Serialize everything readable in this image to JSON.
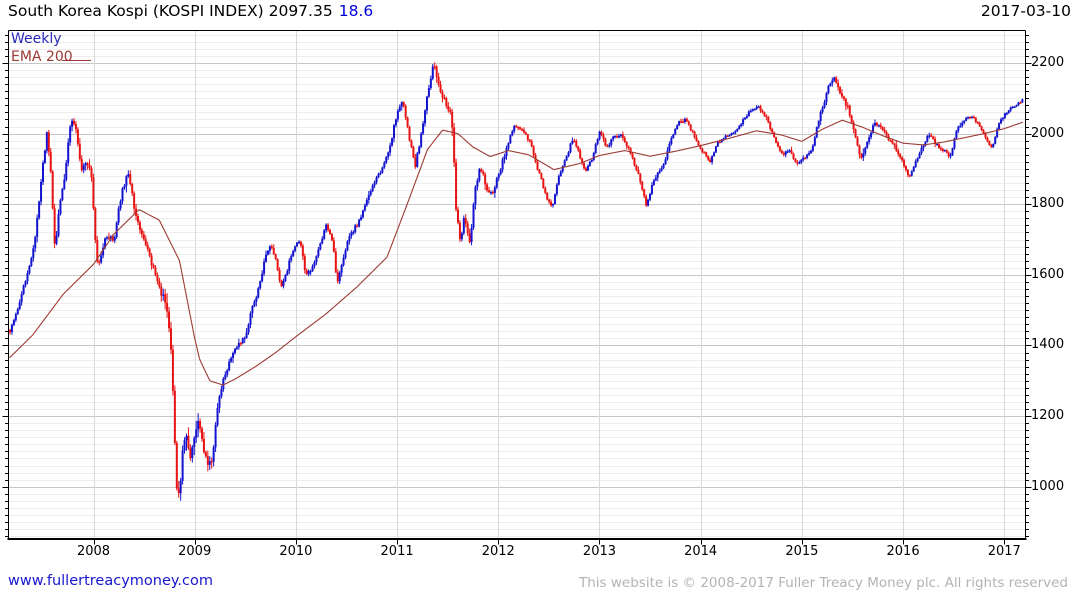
{
  "header": {
    "title": "South Korea Kospi (KOSPI INDEX) 2097.35",
    "change": "18.6",
    "date": "2017-03-10"
  },
  "legend": {
    "weekly": "Weekly",
    "ema": "EMA 200"
  },
  "footer": {
    "website": "www.fullertreacymoney.com",
    "copyright": "This website is © 2008-2017 Fuller Treacy Money plc. All rights reserved"
  },
  "chart_data": {
    "type": "candlestick",
    "title": "South Korea Kospi (KOSPI INDEX)",
    "frequency": "weekly",
    "last_close": 2097.35,
    "change": 18.6,
    "as_of": "2017-03-10",
    "grid": true,
    "legend_position": "top-left",
    "x_ticks": [
      2008,
      2009,
      2010,
      2011,
      2012,
      2013,
      2014,
      2015,
      2016,
      2017
    ],
    "y_ticks": [
      2200,
      2000,
      1800,
      1600,
      1400,
      1200,
      1000
    ],
    "xlim": [
      2007.16,
      2017.21
    ],
    "ylim": [
      852,
      2292
    ],
    "y_minor_step": 20,
    "y_major_step": 200,
    "colors": {
      "up_candle": "#1212cf",
      "down_candle": "#e81212",
      "ema_line": "#9c3a34",
      "weekly_label": "#2a2ab8",
      "title_change": "#0000dd",
      "grid_minor": "#ededed",
      "grid_major": "#c6c6c6",
      "grid_year": "#d9d9d9",
      "frame": "#000000",
      "link": "#1717cf",
      "copyright_gray": "#b3b3b3"
    },
    "series": [
      {
        "name": "KOSPI Index weekly candles",
        "type": "candles",
        "keyframes_close": [
          [
            2007.17,
            1440
          ],
          [
            2007.25,
            1505
          ],
          [
            2007.33,
            1585
          ],
          [
            2007.42,
            1690
          ],
          [
            2007.5,
            1910
          ],
          [
            2007.54,
            2000
          ],
          [
            2007.58,
            1880
          ],
          [
            2007.62,
            1660
          ],
          [
            2007.66,
            1790
          ],
          [
            2007.72,
            1890
          ],
          [
            2007.78,
            2050
          ],
          [
            2007.83,
            2010
          ],
          [
            2007.88,
            1890
          ],
          [
            2007.93,
            1925
          ],
          [
            2007.98,
            1880
          ],
          [
            2008.03,
            1635
          ],
          [
            2008.08,
            1650
          ],
          [
            2008.13,
            1715
          ],
          [
            2008.2,
            1690
          ],
          [
            2008.28,
            1840
          ],
          [
            2008.35,
            1890
          ],
          [
            2008.42,
            1760
          ],
          [
            2008.5,
            1700
          ],
          [
            2008.56,
            1640
          ],
          [
            2008.63,
            1580
          ],
          [
            2008.7,
            1530
          ],
          [
            2008.76,
            1440
          ],
          [
            2008.79,
            1250
          ],
          [
            2008.82,
            1010
          ],
          [
            2008.85,
            950
          ],
          [
            2008.88,
            1100
          ],
          [
            2008.91,
            1170
          ],
          [
            2008.95,
            1080
          ],
          [
            2009.0,
            1150
          ],
          [
            2009.04,
            1180
          ],
          [
            2009.09,
            1100
          ],
          [
            2009.13,
            1070
          ],
          [
            2009.17,
            1060
          ],
          [
            2009.22,
            1210
          ],
          [
            2009.28,
            1300
          ],
          [
            2009.35,
            1360
          ],
          [
            2009.42,
            1400
          ],
          [
            2009.5,
            1420
          ],
          [
            2009.56,
            1500
          ],
          [
            2009.63,
            1560
          ],
          [
            2009.7,
            1650
          ],
          [
            2009.75,
            1690
          ],
          [
            2009.8,
            1640
          ],
          [
            2009.86,
            1560
          ],
          [
            2009.92,
            1620
          ],
          [
            2009.98,
            1680
          ],
          [
            2010.04,
            1700
          ],
          [
            2010.1,
            1595
          ],
          [
            2010.16,
            1620
          ],
          [
            2010.23,
            1680
          ],
          [
            2010.3,
            1740
          ],
          [
            2010.36,
            1700
          ],
          [
            2010.41,
            1570
          ],
          [
            2010.47,
            1650
          ],
          [
            2010.53,
            1710
          ],
          [
            2010.6,
            1740
          ],
          [
            2010.68,
            1790
          ],
          [
            2010.76,
            1860
          ],
          [
            2010.84,
            1890
          ],
          [
            2010.92,
            1950
          ],
          [
            2011.0,
            2060
          ],
          [
            2011.06,
            2090
          ],
          [
            2011.12,
            1990
          ],
          [
            2011.18,
            1910
          ],
          [
            2011.24,
            2000
          ],
          [
            2011.3,
            2110
          ],
          [
            2011.36,
            2200
          ],
          [
            2011.42,
            2120
          ],
          [
            2011.48,
            2090
          ],
          [
            2011.54,
            2060
          ],
          [
            2011.58,
            1800
          ],
          [
            2011.62,
            1700
          ],
          [
            2011.67,
            1770
          ],
          [
            2011.72,
            1690
          ],
          [
            2011.77,
            1840
          ],
          [
            2011.82,
            1910
          ],
          [
            2011.88,
            1850
          ],
          [
            2011.94,
            1830
          ],
          [
            2012.0,
            1880
          ],
          [
            2012.08,
            1960
          ],
          [
            2012.16,
            2020
          ],
          [
            2012.24,
            2010
          ],
          [
            2012.32,
            1970
          ],
          [
            2012.4,
            1890
          ],
          [
            2012.48,
            1820
          ],
          [
            2012.53,
            1790
          ],
          [
            2012.6,
            1880
          ],
          [
            2012.68,
            1940
          ],
          [
            2012.74,
            1990
          ],
          [
            2012.8,
            1940
          ],
          [
            2012.86,
            1890
          ],
          [
            2012.93,
            1930
          ],
          [
            2013.0,
            2010
          ],
          [
            2013.07,
            1960
          ],
          [
            2013.14,
            1990
          ],
          [
            2013.22,
            2000
          ],
          [
            2013.3,
            1950
          ],
          [
            2013.38,
            1890
          ],
          [
            2013.46,
            1800
          ],
          [
            2013.54,
            1870
          ],
          [
            2013.62,
            1900
          ],
          [
            2013.7,
            1980
          ],
          [
            2013.78,
            2030
          ],
          [
            2013.86,
            2040
          ],
          [
            2013.94,
            1990
          ],
          [
            2014.02,
            1950
          ],
          [
            2014.09,
            1920
          ],
          [
            2014.16,
            1970
          ],
          [
            2014.24,
            1990
          ],
          [
            2014.32,
            2000
          ],
          [
            2014.4,
            2030
          ],
          [
            2014.48,
            2060
          ],
          [
            2014.56,
            2080
          ],
          [
            2014.64,
            2050
          ],
          [
            2014.72,
            1990
          ],
          [
            2014.8,
            1940
          ],
          [
            2014.88,
            1950
          ],
          [
            2014.95,
            1910
          ],
          [
            2015.02,
            1930
          ],
          [
            2015.1,
            1960
          ],
          [
            2015.18,
            2050
          ],
          [
            2015.26,
            2130
          ],
          [
            2015.31,
            2160
          ],
          [
            2015.38,
            2110
          ],
          [
            2015.45,
            2080
          ],
          [
            2015.52,
            2010
          ],
          [
            2015.58,
            1920
          ],
          [
            2015.63,
            1960
          ],
          [
            2015.7,
            2020
          ],
          [
            2015.77,
            2030
          ],
          [
            2015.84,
            1990
          ],
          [
            2015.91,
            1970
          ],
          [
            2015.98,
            1930
          ],
          [
            2016.05,
            1880
          ],
          [
            2016.1,
            1900
          ],
          [
            2016.17,
            1950
          ],
          [
            2016.25,
            2000
          ],
          [
            2016.33,
            1970
          ],
          [
            2016.41,
            1950
          ],
          [
            2016.46,
            1930
          ],
          [
            2016.53,
            2010
          ],
          [
            2016.6,
            2040
          ],
          [
            2016.67,
            2050
          ],
          [
            2016.74,
            2030
          ],
          [
            2016.81,
            1990
          ],
          [
            2016.88,
            1960
          ],
          [
            2016.95,
            2030
          ],
          [
            2017.02,
            2060
          ],
          [
            2017.08,
            2075
          ],
          [
            2017.14,
            2085
          ],
          [
            2017.19,
            2097.35
          ]
        ],
        "volatility_keyframes": [
          [
            2007.16,
            1.1
          ],
          [
            2007.6,
            1.4
          ],
          [
            2008.0,
            1.5
          ],
          [
            2008.6,
            1.7
          ],
          [
            2008.78,
            3.0
          ],
          [
            2009.05,
            2.4
          ],
          [
            2009.3,
            1.5
          ],
          [
            2009.8,
            1.0
          ],
          [
            2010.4,
            1.1
          ],
          [
            2011.0,
            1.0
          ],
          [
            2011.3,
            1.1
          ],
          [
            2011.55,
            2.4
          ],
          [
            2011.8,
            1.5
          ],
          [
            2012.2,
            0.9
          ],
          [
            2013.0,
            0.8
          ],
          [
            2013.45,
            1.1
          ],
          [
            2014.0,
            0.7
          ],
          [
            2014.6,
            0.8
          ],
          [
            2015.3,
            1.0
          ],
          [
            2015.6,
            1.3
          ],
          [
            2016.1,
            1.0
          ],
          [
            2016.5,
            0.8
          ],
          [
            2017.0,
            0.6
          ],
          [
            2017.19,
            0.6
          ]
        ]
      },
      {
        "name": "EMA 200",
        "type": "line",
        "keyframes": [
          [
            2007.17,
            1365
          ],
          [
            2007.4,
            1430
          ],
          [
            2007.7,
            1545
          ],
          [
            2008.0,
            1630
          ],
          [
            2008.2,
            1715
          ],
          [
            2008.45,
            1785
          ],
          [
            2008.65,
            1755
          ],
          [
            2008.85,
            1640
          ],
          [
            2009.0,
            1420
          ],
          [
            2009.05,
            1360
          ],
          [
            2009.15,
            1300
          ],
          [
            2009.28,
            1288
          ],
          [
            2009.4,
            1305
          ],
          [
            2009.6,
            1340
          ],
          [
            2009.8,
            1380
          ],
          [
            2010.0,
            1425
          ],
          [
            2010.3,
            1490
          ],
          [
            2010.6,
            1565
          ],
          [
            2010.9,
            1650
          ],
          [
            2011.1,
            1800
          ],
          [
            2011.3,
            1955
          ],
          [
            2011.45,
            2010
          ],
          [
            2011.6,
            2000
          ],
          [
            2011.75,
            1962
          ],
          [
            2011.92,
            1935
          ],
          [
            2012.1,
            1952
          ],
          [
            2012.3,
            1940
          ],
          [
            2012.55,
            1898
          ],
          [
            2012.8,
            1915
          ],
          [
            2013.0,
            1938
          ],
          [
            2013.25,
            1952
          ],
          [
            2013.5,
            1936
          ],
          [
            2013.75,
            1950
          ],
          [
            2014.0,
            1966
          ],
          [
            2014.3,
            1988
          ],
          [
            2014.55,
            2008
          ],
          [
            2014.8,
            1996
          ],
          [
            2015.0,
            1978
          ],
          [
            2015.2,
            2012
          ],
          [
            2015.4,
            2038
          ],
          [
            2015.6,
            2018
          ],
          [
            2015.8,
            1994
          ],
          [
            2016.0,
            1973
          ],
          [
            2016.2,
            1968
          ],
          [
            2016.4,
            1976
          ],
          [
            2016.6,
            1988
          ],
          [
            2016.8,
            2000
          ],
          [
            2017.0,
            2014
          ],
          [
            2017.19,
            2033
          ]
        ]
      }
    ]
  }
}
